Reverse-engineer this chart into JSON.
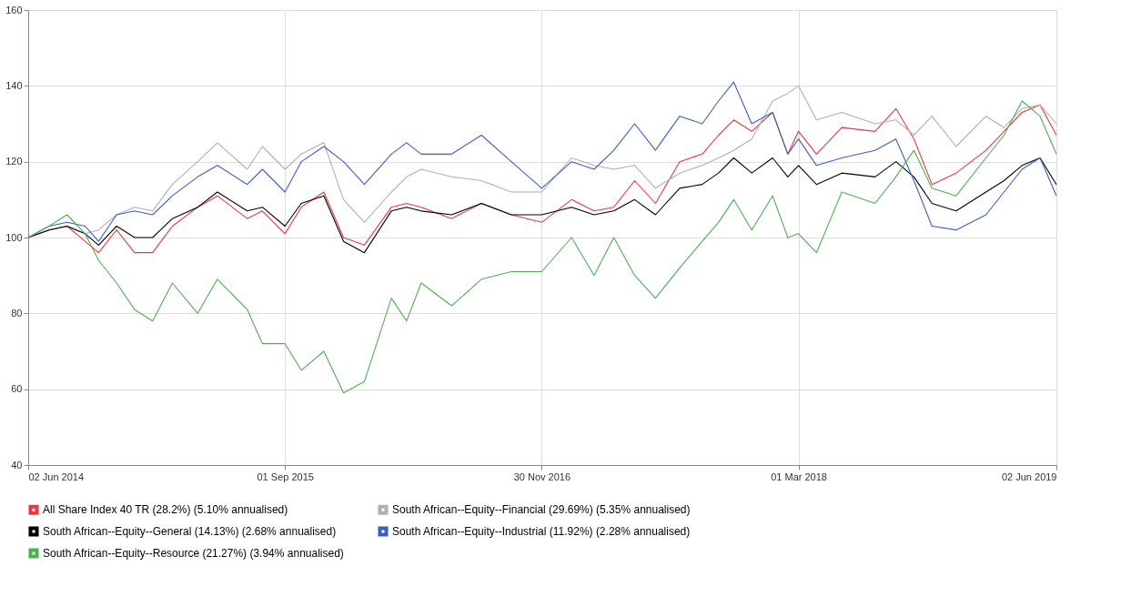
{
  "chart_data": {
    "type": "line",
    "x": [
      "2014-06-02",
      "2014-07-09",
      "2014-08-10",
      "2014-09-11",
      "2014-10-05",
      "2014-11-06",
      "2014-12-08",
      "2015-01-09",
      "2015-02-13",
      "2015-03-30",
      "2015-05-04",
      "2015-06-26",
      "2015-07-23",
      "2015-09-01",
      "2015-09-30",
      "2015-11-09",
      "2015-12-14",
      "2016-01-20",
      "2016-03-08",
      "2016-04-04",
      "2016-04-30",
      "2016-06-23",
      "2016-08-15",
      "2016-10-07",
      "2016-11-30",
      "2017-01-22",
      "2017-03-03",
      "2017-04-07",
      "2017-05-14",
      "2017-06-20",
      "2017-08-02",
      "2017-09-11",
      "2017-10-10",
      "2017-11-06",
      "2017-12-08",
      "2018-01-14",
      "2018-02-10",
      "2018-03-01",
      "2018-04-02",
      "2018-05-17",
      "2018-07-15",
      "2018-08-21",
      "2018-09-22",
      "2018-10-24",
      "2018-12-06",
      "2019-01-28",
      "2019-03-01",
      "2019-04-02",
      "2019-05-04",
      "2019-06-02"
    ],
    "series": [
      {
        "name": "All Share Index 40 TR (28.2%) (5.10% annualised)",
        "color": "#e8383d",
        "values": [
          100,
          102,
          103,
          99,
          96,
          102,
          96,
          96,
          103,
          108,
          111,
          105,
          107,
          101,
          108,
          112,
          100,
          98,
          108,
          109,
          108,
          105,
          109,
          106,
          104,
          110,
          107,
          108,
          115,
          109,
          120,
          122,
          127,
          131,
          128,
          133,
          122,
          128,
          122,
          129,
          128,
          134,
          126,
          114,
          117,
          123,
          128,
          133,
          135,
          127
        ]
      },
      {
        "name": "South African--Equity--Financial (29.69%) (5.35% annualised)",
        "color": "#b0b0b0",
        "values": [
          100,
          102,
          103,
          101,
          102,
          106,
          108,
          107,
          114,
          120,
          125,
          118,
          124,
          118,
          122,
          125,
          110,
          104,
          112,
          116,
          118,
          116,
          115,
          112,
          112,
          121,
          119,
          118,
          119,
          113,
          117,
          119,
          121,
          123,
          126,
          136,
          138,
          140,
          131,
          133,
          130,
          131,
          127,
          132,
          124,
          132,
          129,
          134,
          135,
          130
        ]
      },
      {
        "name": "South African--Equity--General (14.13%) (2.68% annualised)",
        "color": "#000000",
        "values": [
          100,
          102,
          103,
          101,
          98,
          103,
          100,
          100,
          105,
          108,
          112,
          107,
          108,
          103,
          109,
          111,
          99,
          96,
          107,
          108,
          107,
          106,
          109,
          106,
          106,
          108,
          106,
          107,
          110,
          106,
          113,
          114,
          117,
          121,
          117,
          121,
          116,
          119,
          114,
          117,
          116,
          120,
          116,
          109,
          107,
          112,
          115,
          119,
          121,
          114
        ]
      },
      {
        "name": "South African--Equity--Industrial (11.92%) (2.28% annualised)",
        "color": "#3a5fbf",
        "values": [
          100,
          103,
          104,
          103,
          99,
          106,
          107,
          106,
          111,
          116,
          119,
          114,
          118,
          112,
          120,
          124,
          120,
          114,
          122,
          125,
          122,
          122,
          127,
          120,
          113,
          120,
          118,
          123,
          130,
          123,
          132,
          130,
          136,
          141,
          130,
          133,
          122,
          126,
          119,
          121,
          123,
          126,
          115,
          103,
          102,
          106,
          112,
          118,
          121,
          111
        ]
      },
      {
        "name": "South African--Equity--Resource (21.27%) (3.94% annualised)",
        "color": "#4caf50",
        "values": [
          100,
          103,
          106,
          101,
          94,
          88,
          81,
          78,
          88,
          80,
          89,
          81,
          72,
          72,
          65,
          70,
          59,
          62,
          84,
          78,
          88,
          82,
          89,
          91,
          91,
          100,
          90,
          100,
          90,
          84,
          92,
          99,
          104,
          110,
          102,
          111,
          100,
          101,
          96,
          112,
          109,
          116,
          123,
          113,
          111,
          121,
          127,
          136,
          132,
          122
        ]
      }
    ],
    "xlim": [
      "2014-06-02",
      "2019-06-02"
    ],
    "xticks": [
      {
        "value": "2014-06-02",
        "label": "02 Jun 2014"
      },
      {
        "value": "2015-09-01",
        "label": "01 Sep 2015"
      },
      {
        "value": "2016-11-30",
        "label": "30 Nov 2016"
      },
      {
        "value": "2018-03-01",
        "label": "01 Mar 2018"
      },
      {
        "value": "2019-06-02",
        "label": "02 Jun 2019"
      }
    ],
    "ylim": [
      40,
      160
    ],
    "yticks": [
      40,
      60,
      80,
      100,
      120,
      140,
      160
    ],
    "grid": true,
    "legend": "bottom",
    "line_style": "solid",
    "marker": "none"
  }
}
